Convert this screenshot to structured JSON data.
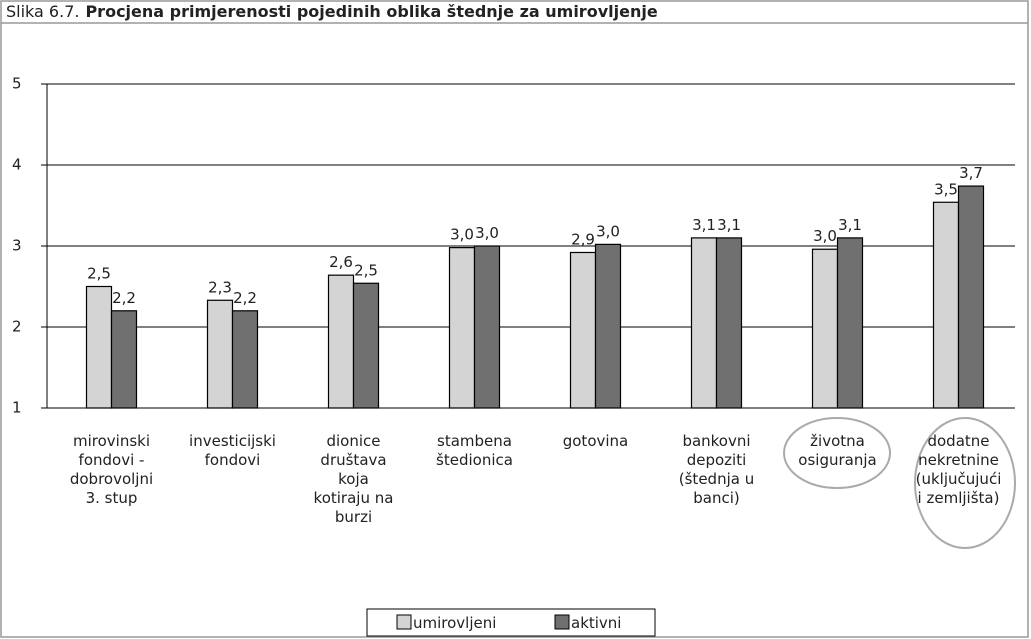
{
  "chart_data": {
    "type": "bar",
    "label": "Slika 6.7.",
    "title": "Procjena primjerenosti pojedinih oblika štednje za umirovljenje",
    "categories": [
      "mirovinski\nfondovi -\ndobrovoljni\n3. stup",
      "investicijski\nfondovi",
      "dionice\ndruštava\nkoja\nkotiraju na\nburzi",
      "stambena\nštedionica",
      "gotovina",
      "bankovni\ndepoziti\n(štednja u\nbanci)",
      "životna\nosiguranja",
      "dodatne\nnekretnine\n(uključujući\ni zemljišta)"
    ],
    "series": [
      {
        "name": "umirovljeni",
        "color": "#d4d4d4",
        "values": [
          2.5,
          2.33,
          2.64,
          2.98,
          2.92,
          3.1,
          2.96,
          3.54
        ],
        "value_labels": [
          "2,5",
          "2,3",
          "2,6",
          "3,0",
          "2,9",
          "3,1",
          "3,0",
          "3,5"
        ]
      },
      {
        "name": "aktivni",
        "color": "#707070",
        "values": [
          2.2,
          2.2,
          2.54,
          3.0,
          3.02,
          3.1,
          3.1,
          3.74
        ],
        "value_labels": [
          "2,2",
          "2,2",
          "2,5",
          "3,0",
          "3,0",
          "3,1",
          "3,1",
          "3,7"
        ]
      }
    ],
    "ylim": [
      1,
      5
    ],
    "yticks": [
      1,
      2,
      3,
      4,
      5
    ],
    "grid": true
  }
}
